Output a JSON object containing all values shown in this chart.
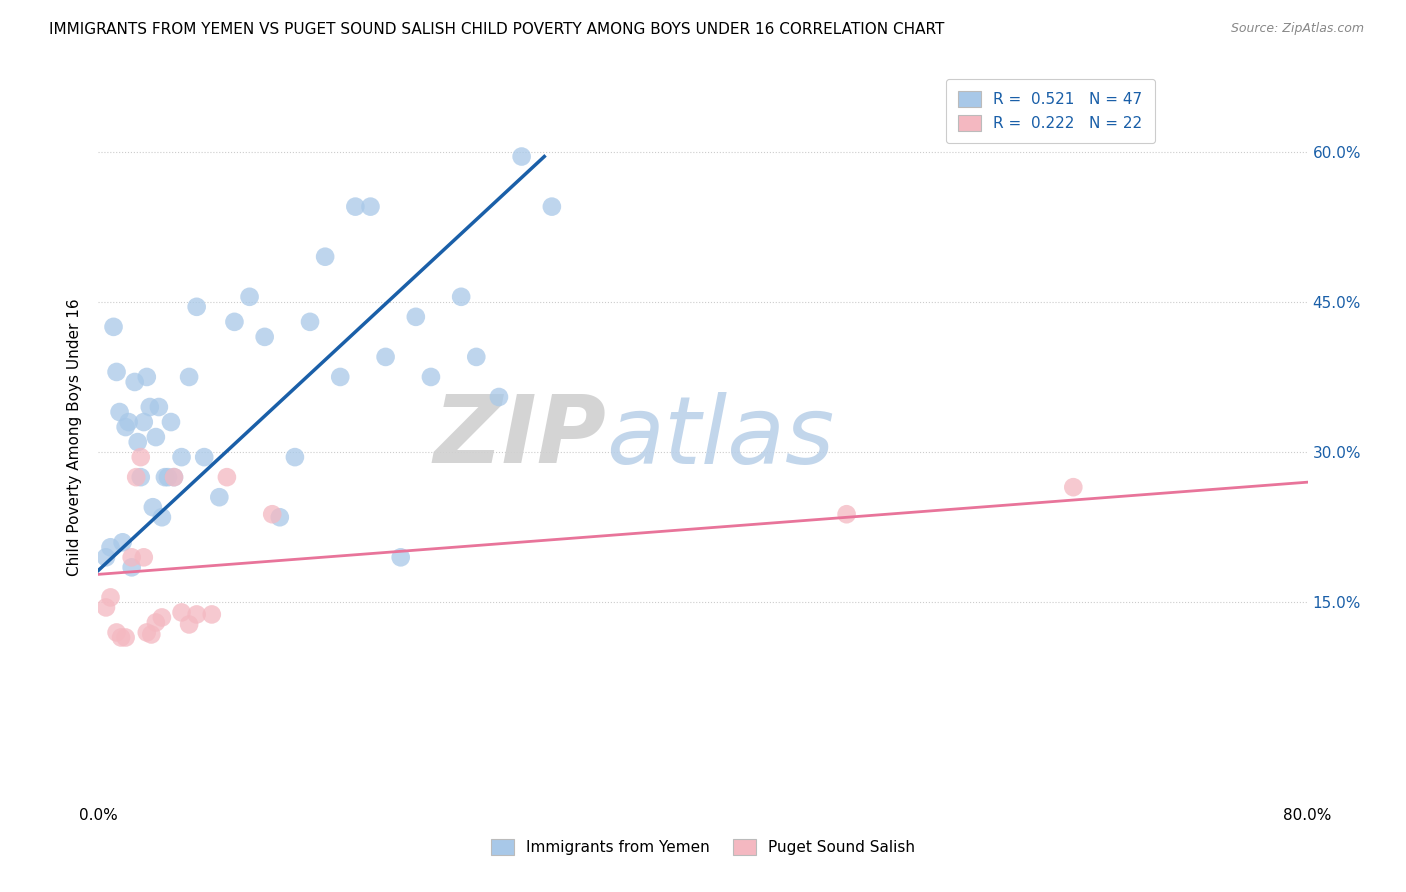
{
  "title": "IMMIGRANTS FROM YEMEN VS PUGET SOUND SALISH CHILD POVERTY AMONG BOYS UNDER 16 CORRELATION CHART",
  "source": "Source: ZipAtlas.com",
  "ylabel": "Child Poverty Among Boys Under 16",
  "xlim": [
    0.0,
    0.8
  ],
  "ylim": [
    -0.05,
    0.68
  ],
  "xticks": [
    0.0,
    0.1,
    0.2,
    0.3,
    0.4,
    0.5,
    0.6,
    0.7,
    0.8
  ],
  "xticklabels": [
    "0.0%",
    "",
    "",
    "",
    "",
    "",
    "",
    "",
    "80.0%"
  ],
  "yticks": [
    0.15,
    0.3,
    0.45,
    0.6
  ],
  "ytick_labels_right": [
    "15.0%",
    "30.0%",
    "45.0%",
    "60.0%"
  ],
  "watermark_zip": "ZIP",
  "watermark_atlas": "atlas",
  "legend_line1": "R =  0.521   N = 47",
  "legend_line2": "R =  0.222   N = 22",
  "legend_val1": "0.521",
  "legend_nval1": "47",
  "legend_val2": "0.222",
  "legend_nval2": "22",
  "color_blue": "#a8c8e8",
  "color_blue_line": "#1a5fa8",
  "color_pink": "#f4b8c1",
  "color_pink_line": "#e8749a",
  "legend_text_color": "#1a5fa8",
  "grid_color": "#cccccc",
  "blue_scatter_x": [
    0.005,
    0.008,
    0.01,
    0.012,
    0.014,
    0.016,
    0.018,
    0.02,
    0.022,
    0.024,
    0.026,
    0.028,
    0.03,
    0.032,
    0.034,
    0.036,
    0.038,
    0.04,
    0.042,
    0.044,
    0.046,
    0.048,
    0.05,
    0.055,
    0.06,
    0.065,
    0.07,
    0.08,
    0.09,
    0.1,
    0.11,
    0.12,
    0.13,
    0.14,
    0.15,
    0.16,
    0.17,
    0.18,
    0.19,
    0.2,
    0.21,
    0.22,
    0.24,
    0.25,
    0.265,
    0.28,
    0.3
  ],
  "blue_scatter_y": [
    0.195,
    0.205,
    0.425,
    0.38,
    0.34,
    0.21,
    0.325,
    0.33,
    0.185,
    0.37,
    0.31,
    0.275,
    0.33,
    0.375,
    0.345,
    0.245,
    0.315,
    0.345,
    0.235,
    0.275,
    0.275,
    0.33,
    0.275,
    0.295,
    0.375,
    0.445,
    0.295,
    0.255,
    0.43,
    0.455,
    0.415,
    0.235,
    0.295,
    0.43,
    0.495,
    0.375,
    0.545,
    0.545,
    0.395,
    0.195,
    0.435,
    0.375,
    0.455,
    0.395,
    0.355,
    0.595,
    0.545
  ],
  "pink_scatter_x": [
    0.005,
    0.008,
    0.012,
    0.015,
    0.018,
    0.022,
    0.025,
    0.028,
    0.03,
    0.032,
    0.035,
    0.038,
    0.042,
    0.05,
    0.055,
    0.06,
    0.065,
    0.075,
    0.085,
    0.115,
    0.495,
    0.645
  ],
  "pink_scatter_y": [
    0.145,
    0.155,
    0.12,
    0.115,
    0.115,
    0.195,
    0.275,
    0.295,
    0.195,
    0.12,
    0.118,
    0.13,
    0.135,
    0.275,
    0.14,
    0.128,
    0.138,
    0.138,
    0.275,
    0.238,
    0.238,
    0.265
  ],
  "blue_line_x": [
    0.0,
    0.295
  ],
  "blue_line_y": [
    0.182,
    0.595
  ],
  "pink_line_x": [
    0.0,
    0.8
  ],
  "pink_line_y": [
    0.178,
    0.27
  ],
  "background_color": "#ffffff"
}
